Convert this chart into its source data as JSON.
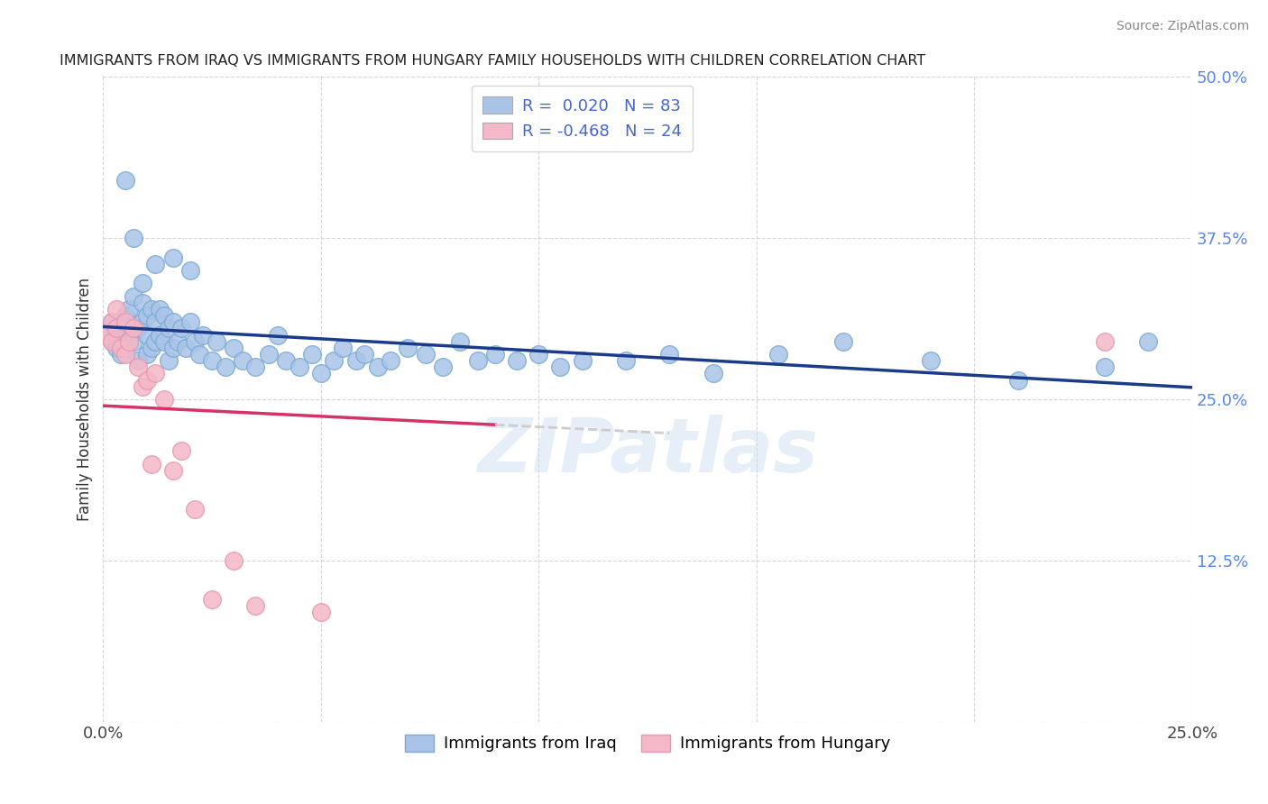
{
  "title": "IMMIGRANTS FROM IRAQ VS IMMIGRANTS FROM HUNGARY FAMILY HOUSEHOLDS WITH CHILDREN CORRELATION CHART",
  "source": "Source: ZipAtlas.com",
  "ylabel": "Family Households with Children",
  "xlim": [
    0.0,
    0.25
  ],
  "ylim": [
    0.0,
    0.5
  ],
  "yticks": [
    0.0,
    0.125,
    0.25,
    0.375,
    0.5
  ],
  "ytick_labels": [
    "",
    "12.5%",
    "25.0%",
    "37.5%",
    "50.0%"
  ],
  "xticks": [
    0.0,
    0.05,
    0.1,
    0.15,
    0.2,
    0.25
  ],
  "xtick_labels": [
    "0.0%",
    "",
    "",
    "",
    "",
    "25.0%"
  ],
  "background_color": "#ffffff",
  "grid_color": "#cccccc",
  "iraq_color": "#aac4e8",
  "hungary_color": "#f4b8c8",
  "iraq_edge_color": "#7aaad4",
  "hungary_edge_color": "#e898b0",
  "trend_iraq_color": "#1a3a8a",
  "trend_hungary_color": "#d43366",
  "trend_hungary_dashed_color": "#cccccc",
  "R_iraq": 0.02,
  "N_iraq": 83,
  "R_hungary": -0.468,
  "N_hungary": 24,
  "iraq_x": [
    0.001,
    0.002,
    0.002,
    0.003,
    0.003,
    0.004,
    0.004,
    0.005,
    0.005,
    0.005,
    0.006,
    0.006,
    0.007,
    0.007,
    0.008,
    0.008,
    0.009,
    0.009,
    0.01,
    0.01,
    0.01,
    0.011,
    0.011,
    0.012,
    0.012,
    0.013,
    0.013,
    0.014,
    0.014,
    0.015,
    0.015,
    0.016,
    0.016,
    0.017,
    0.018,
    0.019,
    0.02,
    0.021,
    0.022,
    0.023,
    0.025,
    0.026,
    0.028,
    0.03,
    0.032,
    0.035,
    0.038,
    0.04,
    0.042,
    0.045,
    0.048,
    0.05,
    0.053,
    0.055,
    0.058,
    0.06,
    0.063,
    0.066,
    0.07,
    0.074,
    0.078,
    0.082,
    0.086,
    0.09,
    0.095,
    0.1,
    0.105,
    0.11,
    0.12,
    0.13,
    0.14,
    0.155,
    0.17,
    0.19,
    0.21,
    0.23,
    0.005,
    0.007,
    0.009,
    0.012,
    0.016,
    0.02,
    0.24
  ],
  "iraq_y": [
    0.305,
    0.31,
    0.295,
    0.3,
    0.29,
    0.31,
    0.285,
    0.315,
    0.3,
    0.29,
    0.32,
    0.305,
    0.33,
    0.295,
    0.305,
    0.28,
    0.325,
    0.31,
    0.315,
    0.3,
    0.285,
    0.32,
    0.29,
    0.31,
    0.295,
    0.32,
    0.3,
    0.315,
    0.295,
    0.305,
    0.28,
    0.31,
    0.29,
    0.295,
    0.305,
    0.29,
    0.31,
    0.295,
    0.285,
    0.3,
    0.28,
    0.295,
    0.275,
    0.29,
    0.28,
    0.275,
    0.285,
    0.3,
    0.28,
    0.275,
    0.285,
    0.27,
    0.28,
    0.29,
    0.28,
    0.285,
    0.275,
    0.28,
    0.29,
    0.285,
    0.275,
    0.295,
    0.28,
    0.285,
    0.28,
    0.285,
    0.275,
    0.28,
    0.28,
    0.285,
    0.27,
    0.285,
    0.295,
    0.28,
    0.265,
    0.275,
    0.42,
    0.375,
    0.34,
    0.355,
    0.36,
    0.35,
    0.295
  ],
  "hungary_x": [
    0.001,
    0.002,
    0.002,
    0.003,
    0.003,
    0.004,
    0.005,
    0.005,
    0.006,
    0.007,
    0.008,
    0.009,
    0.01,
    0.011,
    0.012,
    0.014,
    0.016,
    0.018,
    0.021,
    0.025,
    0.03,
    0.035,
    0.05,
    0.23
  ],
  "hungary_y": [
    0.3,
    0.31,
    0.295,
    0.32,
    0.305,
    0.29,
    0.31,
    0.285,
    0.295,
    0.305,
    0.275,
    0.26,
    0.265,
    0.2,
    0.27,
    0.25,
    0.195,
    0.21,
    0.165,
    0.095,
    0.125,
    0.09,
    0.085,
    0.295
  ],
  "watermark_text": "ZIPatlas",
  "legend_line1": "R =  0.020   N = 83",
  "legend_line2": "R = -0.468   N = 24"
}
